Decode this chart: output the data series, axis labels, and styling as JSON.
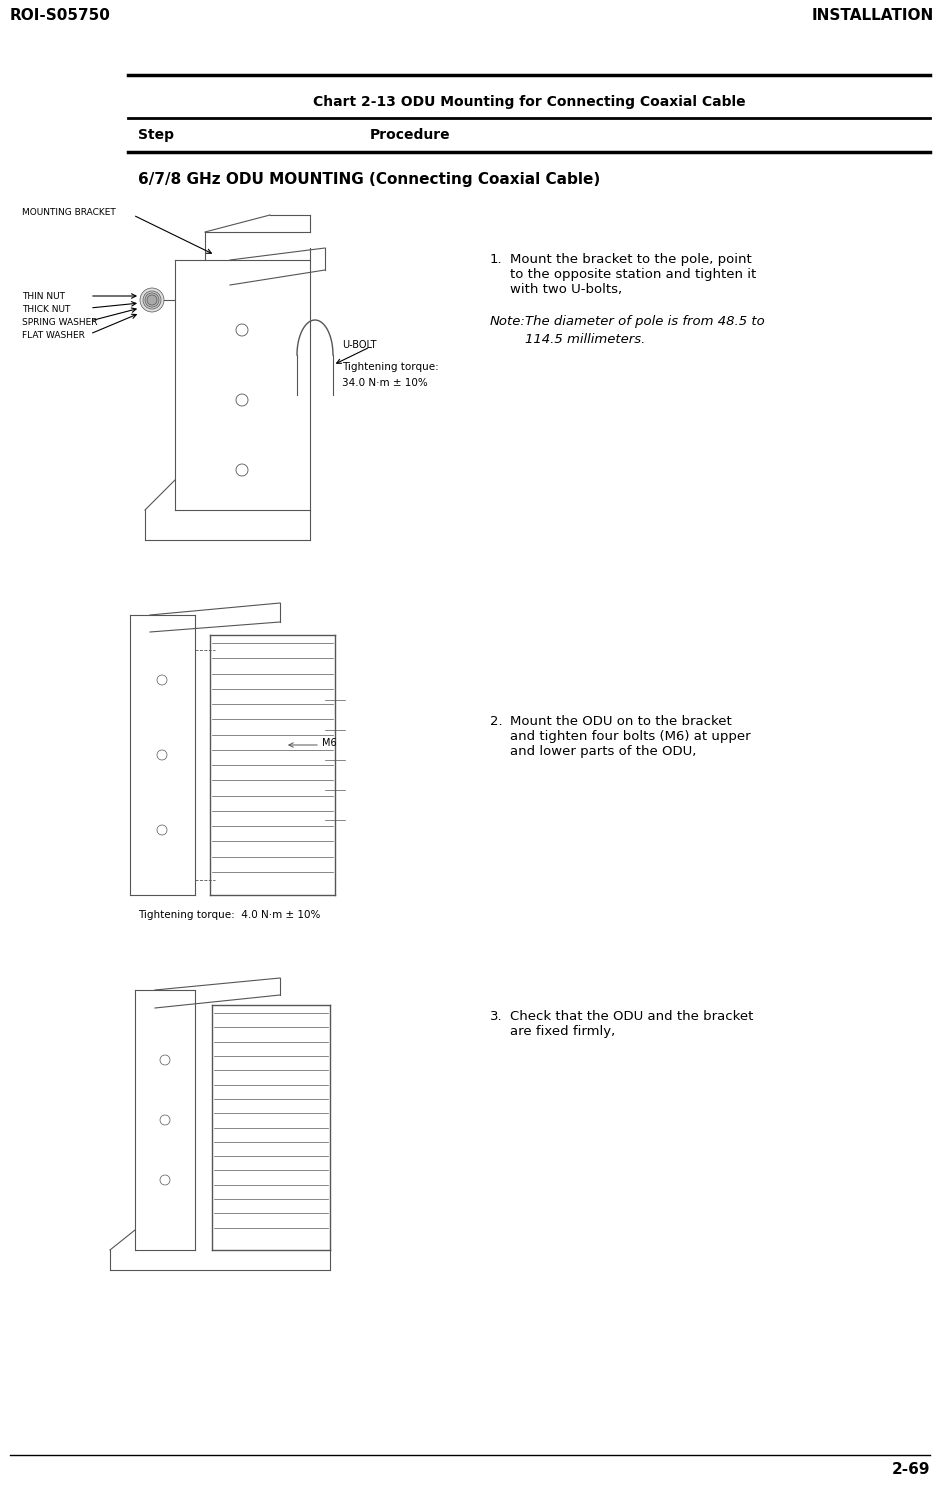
{
  "header_left": "ROI-S05750",
  "header_right": "INSTALLATION",
  "footer_right": "2-69",
  "chart_title": "Chart 2-13 ODU Mounting for Connecting Coaxial Cable",
  "col1_header": "Step",
  "col2_header": "Procedure",
  "section_title": "6/7/8 GHz ODU MOUNTING (Connecting Coaxial Cable)",
  "step1_num": "1.",
  "step1_body": "Mount the bracket to the pole, point\nto the opposite station and tighten it\nwith two U-bolts,",
  "step1_note_label": "Note:",
  "step1_note_body": "The diameter of pole is from 48.5 to\n      114.5 millimeters.",
  "label_mounting_bracket": "MOUNTING BRACKET",
  "label_thin_nut": "THIN NUT",
  "label_thick_nut": "THICK NUT",
  "label_spring_washer": "SPRING WASHER",
  "label_flat_washer": "FLAT WASHER",
  "label_ubolt": "U-BOLT",
  "tightening1_line1": "Tightening torque:",
  "tightening1_line2": "34.0 N·m ± 10%",
  "step2_num": "2.",
  "step2_body": "Mount the ODU on to the bracket\nand tighten four bolts (M6) at upper\nand lower parts of the ODU,",
  "label_m6": "M6",
  "tightening2": "Tightening torque:  4.0 N·m ± 10%",
  "step3_num": "3.",
  "step3_body": "Check that the ODU and the bracket\nare fixed firmly,",
  "bg_color": "#ffffff",
  "text_color": "#000000",
  "diagram_line_color": "#555555",
  "diagram_fill_color": "#f0f0f0"
}
